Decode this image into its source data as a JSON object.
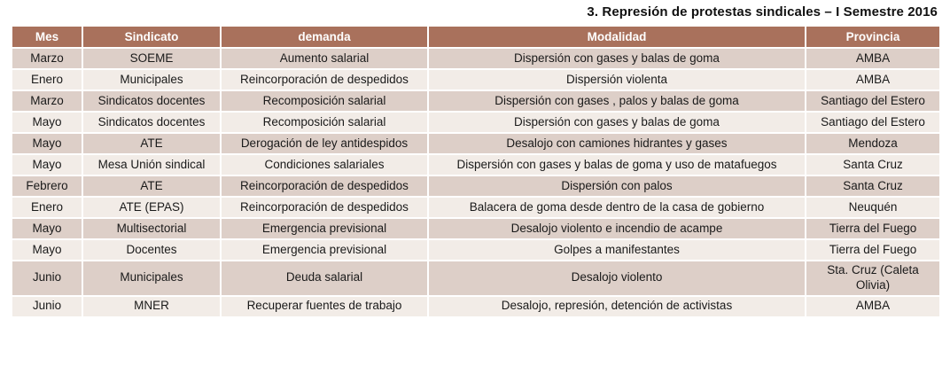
{
  "title": "3. Represión de protestas sindicales – I Semestre 2016",
  "colors": {
    "header_bg": "#a9715c",
    "header_text": "#ffffff",
    "row_odd_bg": "#ddcfc8",
    "row_even_bg": "#f2ece7",
    "cell_text": "#1a1a1a",
    "divider": "#ffffff"
  },
  "table": {
    "columns": [
      {
        "key": "mes",
        "label": "Mes"
      },
      {
        "key": "sindicato",
        "label": "Sindicato"
      },
      {
        "key": "demanda",
        "label": "demanda"
      },
      {
        "key": "modalidad",
        "label": "Modalidad"
      },
      {
        "key": "provincia",
        "label": "Provincia"
      }
    ],
    "rows": [
      [
        "Marzo",
        "SOEME",
        "Aumento salarial",
        "Dispersión con gases y balas de goma",
        "AMBA"
      ],
      [
        "Enero",
        "Municipales",
        "Reincorporación de despedidos",
        "Dispersión violenta",
        "AMBA"
      ],
      [
        "Marzo",
        "Sindicatos docentes",
        "Recomposición salarial",
        "Dispersión con gases , palos y balas de goma",
        "Santiago del Estero"
      ],
      [
        "Mayo",
        "Sindicatos docentes",
        "Recomposición salarial",
        "Dispersión con gases y balas de goma",
        "Santiago del Estero"
      ],
      [
        "Mayo",
        "ATE",
        "Derogación de ley antidespidos",
        "Desalojo con camiones hidrantes y gases",
        "Mendoza"
      ],
      [
        "Mayo",
        "Mesa Unión sindical",
        "Condiciones salariales",
        "Dispersión con gases y balas de goma y uso de matafuegos",
        "Santa Cruz"
      ],
      [
        "Febrero",
        "ATE",
        "Reincorporación de despedidos",
        "Dispersión con palos",
        "Santa Cruz"
      ],
      [
        "Enero",
        "ATE (EPAS)",
        "Reincorporación de despedidos",
        "Balacera de goma desde dentro de la casa de gobierno",
        "Neuquén"
      ],
      [
        "Mayo",
        "Multisectorial",
        "Emergencia previsional",
        "Desalojo violento e incendio de acampe",
        "Tierra del Fuego"
      ],
      [
        "Mayo",
        "Docentes",
        "Emergencia previsional",
        "Golpes a manifestantes",
        "Tierra del Fuego"
      ],
      [
        "Junio",
        "Municipales",
        "Deuda salarial",
        "Desalojo violento",
        "Sta. Cruz (Caleta Olivia)"
      ],
      [
        "Junio",
        "MNER",
        "Recuperar fuentes de trabajo",
        "Desalojo, represión, detención de activistas",
        "AMBA"
      ]
    ]
  }
}
